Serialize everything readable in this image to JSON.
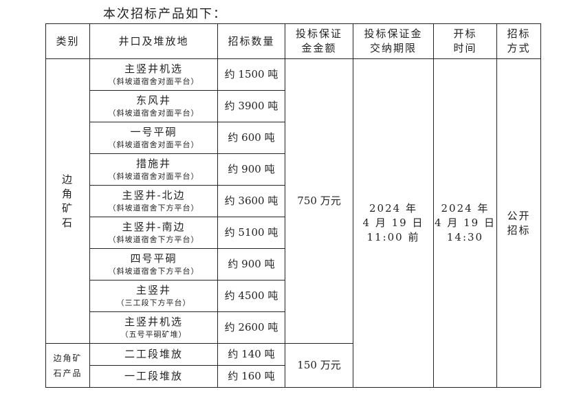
{
  "intro": "本次招标产品如下：",
  "headers": [
    "类别",
    "井口及堆放地",
    "招标数量",
    "投标保证金金额",
    "投标保证金交纳期限",
    "开标时间",
    "招标方式"
  ],
  "group1": {
    "category": "边角矿石",
    "deposit": "750 万元",
    "rows": [
      {
        "name": "主竖井机选",
        "loc": "（斜坡道宿舍对面平台）",
        "qty": "约 1500 吨"
      },
      {
        "name": "东风井",
        "loc": "（斜坡道宿舍对面平台）",
        "qty": "约 3900 吨"
      },
      {
        "name": "一号平硐",
        "loc": "（斜坡道宿舍对面平台）",
        "qty": "约 600 吨"
      },
      {
        "name": "措施井",
        "loc": "（斜坡道宿舍对面平台）",
        "qty": "约 900 吨"
      },
      {
        "name": "主竖井-北边",
        "loc": "（斜坡道宿舍下方平台）",
        "qty": "约 3600 吨"
      },
      {
        "name": "主竖井-南边",
        "loc": "（斜坡道宿舍下方平台）",
        "qty": "约 5100 吨"
      },
      {
        "name": "四号平硐",
        "loc": "（斜坡道宿舍下方平台）",
        "qty": "约 900 吨"
      },
      {
        "name": "主竖井",
        "loc": "（三工段下方平台）",
        "qty": "约 4500 吨"
      },
      {
        "name": "主竖井机选",
        "loc": "（五号平硐矿堆）",
        "qty": "约 2600 吨"
      }
    ]
  },
  "group2": {
    "category": "边角矿石产品",
    "deposit": "150 万元",
    "rows": [
      {
        "name": "二工段堆放",
        "qty": "约 140 吨"
      },
      {
        "name": "一工段堆放",
        "qty": "约 160 吨"
      }
    ]
  },
  "deadline": [
    "2024 年",
    "4 月 19 日",
    "11:00 前"
  ],
  "opening": [
    "2024 年",
    "4 月 19 日",
    "14:30"
  ],
  "method": [
    "公开",
    "招标"
  ]
}
